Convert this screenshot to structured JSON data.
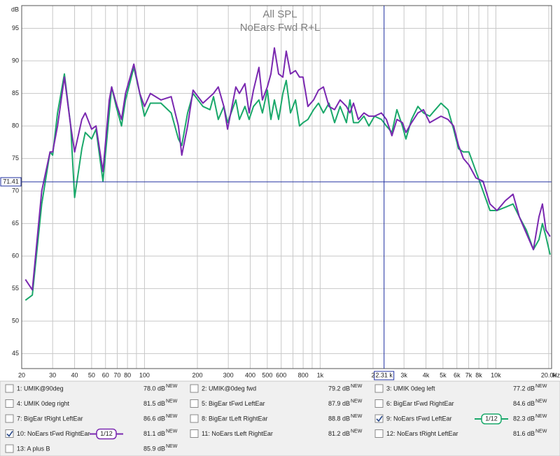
{
  "chart_data": {
    "type": "line",
    "title": "All SPL",
    "subtitle": "NoEars Fwd R+L",
    "ylabel": "dB",
    "xlabel": "Hz",
    "xscale": "log",
    "grid": true,
    "xlim": [
      20,
      20760
    ],
    "ylim": [
      42.7,
      98.5
    ],
    "yticks": [
      45,
      50,
      55,
      60,
      65,
      70,
      75,
      80,
      85,
      90,
      95
    ],
    "xticks": [
      20,
      30,
      40,
      50,
      60,
      70,
      80,
      100,
      200,
      300,
      400,
      500,
      600,
      800,
      {
        "value": 1000,
        "label": "1k"
      },
      {
        "value": 2000,
        "label": "2"
      },
      {
        "value": 3000,
        "label": "3k"
      },
      {
        "value": 4000,
        "label": "4k"
      },
      {
        "value": 5000,
        "label": "5k"
      },
      {
        "value": 6000,
        "label": "6k"
      },
      {
        "value": 7000,
        "label": "7k"
      },
      {
        "value": 8000,
        "label": "8k"
      },
      {
        "value": 10000,
        "label": "10k"
      },
      {
        "value": 20000,
        "label": "20.0k"
      }
    ],
    "xminor_ticks": [
      90,
      700,
      900,
      9000
    ],
    "cursor": {
      "x": 2310,
      "x_label": "2.31 k",
      "y": 71.41
    },
    "x": [
      21,
      23,
      26,
      29,
      30,
      32,
      35,
      38,
      40,
      44,
      46,
      50,
      53,
      58,
      63,
      65,
      69,
      74,
      78,
      87,
      94,
      100,
      108,
      124,
      142,
      156,
      163,
      176,
      189,
      215,
      236,
      247,
      263,
      283,
      297,
      331,
      347,
      373,
      394,
      417,
      448,
      469,
      500,
      524,
      549,
      580,
      613,
      641,
      678,
      723,
      763,
      799,
      852,
      917,
      978,
      1043,
      1122,
      1208,
      1299,
      1411,
      1477,
      1547,
      1649,
      1775,
      1893,
      2037,
      2232,
      2382,
      2562,
      2732,
      2940,
      3078,
      3312,
      3598,
      3873,
      4204,
      4524,
      4870,
      5338,
      5744,
      6126,
      6532,
      7028,
      7704,
      8446,
      9258,
      10148,
      11324,
      12528,
      13610,
      14912,
      16348,
      17588,
      18414,
      19280,
      20368
    ],
    "series": [
      {
        "name": "1: UMIK@90deg",
        "color": "#4a5fd0",
        "level": "78.0 dB",
        "badge": "NEW",
        "checked": false
      },
      {
        "name": "2: UMIK@0deg fwd",
        "color": "#a030a0",
        "level": "79.2 dB",
        "badge": "NEW",
        "checked": false
      },
      {
        "name": "3: UMIK 0deg left",
        "color": "#2090a0",
        "level": "77.2 dB",
        "badge": "NEW",
        "checked": false
      },
      {
        "name": "4: UMIK 0deg right",
        "color": "#c88a00",
        "level": "81.5 dB",
        "badge": "NEW",
        "checked": false
      },
      {
        "name": "5: BigEar tFwd LeftEar",
        "color": "#c02890",
        "level": "87.9 dB",
        "badge": "NEW",
        "checked": false
      },
      {
        "name": "6: BigEar tFwd RightEar",
        "color": "#2090b0",
        "level": "84.6 dB",
        "badge": "NEW",
        "checked": false
      },
      {
        "name": "7: BigEar tRight LeftEar",
        "color": "#20a030",
        "level": "86.6 dB",
        "badge": "NEW",
        "checked": false
      },
      {
        "name": "8: BigEar tLeft RightEar",
        "color": "#b09000",
        "level": "88.8 dB",
        "badge": "NEW",
        "checked": false
      },
      {
        "name": "9: NoEars tFwd LeftEar",
        "color": "#1aa86a",
        "level": "82.3 dB",
        "badge": "NEW",
        "checked": true,
        "smoothing": "1/12",
        "values": [
          53.2,
          54,
          68,
          76,
          75.5,
          82,
          88,
          80,
          69,
          76.5,
          79,
          78,
          79.5,
          71.5,
          82,
          86,
          83,
          80,
          84,
          89,
          85,
          81.5,
          83.5,
          83.5,
          82,
          78,
          77,
          82,
          85,
          83,
          82.5,
          84.5,
          81,
          83,
          80.5,
          84,
          81,
          83,
          81,
          83,
          84,
          82,
          85.5,
          81,
          84,
          81,
          85,
          87,
          82,
          84,
          80,
          80.5,
          81,
          82.5,
          83.5,
          82,
          83.5,
          80.5,
          83,
          80.5,
          84,
          80.5,
          80.5,
          81.5,
          80,
          81.5,
          81,
          80,
          79,
          82.5,
          80,
          78,
          81,
          83,
          82,
          81.5,
          82.5,
          83.5,
          82.5,
          79.5,
          76.5,
          76,
          76,
          73,
          70,
          67,
          67,
          67.5,
          68,
          66,
          64,
          61,
          62.5,
          65,
          63,
          60.2
        ]
      },
      {
        "name": "10: NoEars tFwd RightEar",
        "color": "#7a28b0",
        "level": "81.1 dB",
        "badge": "NEW",
        "checked": true,
        "smoothing": "1/12",
        "values": [
          56.4,
          54.8,
          70,
          76,
          76,
          80,
          87.5,
          80,
          76,
          81,
          82,
          79.5,
          80,
          73,
          84,
          86,
          83.5,
          81,
          85,
          89.5,
          85,
          83,
          85,
          84,
          84.5,
          80,
          75.5,
          80,
          85.5,
          83.5,
          84.5,
          85,
          86,
          83,
          79.5,
          86,
          85,
          86.5,
          82,
          85.5,
          89,
          84,
          86,
          88,
          92,
          88,
          87.5,
          91.5,
          88,
          88.5,
          87.5,
          87.5,
          83,
          84,
          85.5,
          86,
          83,
          82.5,
          84,
          83,
          82,
          83.5,
          81,
          82,
          81.5,
          81.5,
          82,
          81,
          78.5,
          81,
          80.5,
          79,
          80.5,
          82,
          82.5,
          80.5,
          81,
          81.5,
          81,
          80,
          77,
          75,
          74,
          72,
          71.5,
          68,
          67,
          68.5,
          69.5,
          66,
          63.5,
          61,
          66,
          68,
          64,
          63
        ]
      },
      {
        "name": "11: NoEars tLeft RightEar",
        "color": "#4040c0",
        "level": "81.2 dB",
        "badge": "NEW",
        "checked": false
      },
      {
        "name": "12: NoEars tRight LeftEar",
        "color": "#c02070",
        "level": "81.6 dB",
        "badge": "NEW",
        "checked": false
      },
      {
        "name": "13: A plus B",
        "color": "#d09000",
        "level": "85.9 dB",
        "badge": "NEW",
        "checked": false
      }
    ]
  }
}
